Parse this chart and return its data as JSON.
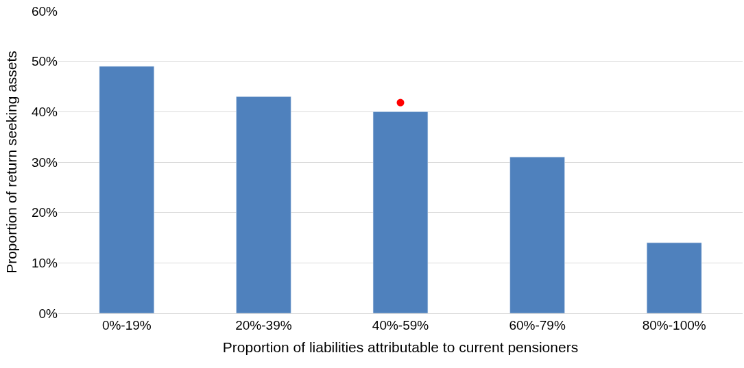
{
  "chart_data": {
    "type": "bar",
    "categories": [
      "0%-19%",
      "20%-39%",
      "40%-59%",
      "60%-79%",
      "80%-100%"
    ],
    "xlabel": "Proportion of liabilities attributable to current pensioners",
    "ylabel": "Proportion of return seeking assets",
    "series": [
      {
        "color": "#4f81bd",
        "values": [
          49,
          43,
          40,
          31,
          14
        ]
      },
      {
        "type": "scatter",
        "color": "#ff0000",
        "x": [
          "40%-59%"
        ],
        "values": [
          41.8
        ],
        "marker": "circle"
      }
    ],
    "ylim": [
      0,
      60
    ],
    "yticks": [
      {
        "value": 0,
        "label": "0%"
      },
      {
        "value": 10,
        "label": "10%"
      },
      {
        "value": 20,
        "label": "20%"
      },
      {
        "value": 30,
        "label": "30%"
      },
      {
        "value": 40,
        "label": "40%"
      },
      {
        "value": 50,
        "label": "50%"
      },
      {
        "value": 60,
        "label": "60%"
      }
    ],
    "grid": "y"
  }
}
